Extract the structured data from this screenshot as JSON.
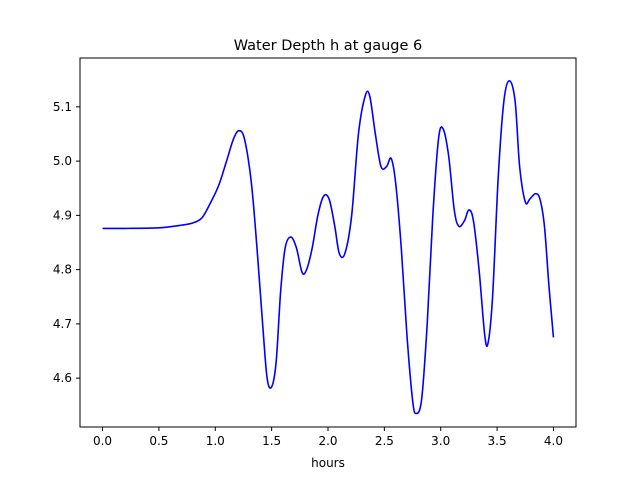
{
  "chart_data": {
    "type": "line",
    "title": "Water Depth h at gauge 6",
    "xlabel": "hours",
    "ylabel": "",
    "xlim": [
      -0.2,
      4.2
    ],
    "ylim": [
      4.51,
      5.19
    ],
    "xticks": [
      0.0,
      0.5,
      1.0,
      1.5,
      2.0,
      2.5,
      3.0,
      3.5,
      4.0
    ],
    "xtick_labels": [
      "0.0",
      "0.5",
      "1.0",
      "1.5",
      "2.0",
      "2.5",
      "3.0",
      "3.5",
      "4.0"
    ],
    "yticks": [
      4.6,
      4.7,
      4.8,
      4.9,
      5.0,
      5.1
    ],
    "ytick_labels": [
      "4.6",
      "4.7",
      "4.8",
      "4.9",
      "5.0",
      "5.1"
    ],
    "grid": false,
    "series": [
      {
        "color": "#0000ff",
        "points": [
          [
            0.0,
            4.876
          ],
          [
            0.2,
            4.876
          ],
          [
            0.5,
            4.877
          ],
          [
            0.7,
            4.882
          ],
          [
            0.8,
            4.886
          ],
          [
            0.88,
            4.895
          ],
          [
            0.95,
            4.92
          ],
          [
            1.03,
            4.955
          ],
          [
            1.1,
            5.0
          ],
          [
            1.16,
            5.04
          ],
          [
            1.21,
            5.056
          ],
          [
            1.26,
            5.04
          ],
          [
            1.32,
            4.96
          ],
          [
            1.37,
            4.84
          ],
          [
            1.42,
            4.7
          ],
          [
            1.46,
            4.6
          ],
          [
            1.5,
            4.584
          ],
          [
            1.54,
            4.63
          ],
          [
            1.58,
            4.76
          ],
          [
            1.62,
            4.84
          ],
          [
            1.67,
            4.86
          ],
          [
            1.72,
            4.84
          ],
          [
            1.77,
            4.795
          ],
          [
            1.81,
            4.8
          ],
          [
            1.86,
            4.84
          ],
          [
            1.91,
            4.9
          ],
          [
            1.96,
            4.935
          ],
          [
            2.01,
            4.93
          ],
          [
            2.06,
            4.88
          ],
          [
            2.1,
            4.83
          ],
          [
            2.15,
            4.83
          ],
          [
            2.21,
            4.9
          ],
          [
            2.27,
            5.05
          ],
          [
            2.33,
            5.12
          ],
          [
            2.37,
            5.12
          ],
          [
            2.42,
            5.05
          ],
          [
            2.47,
            4.99
          ],
          [
            2.52,
            4.99
          ],
          [
            2.56,
            5.005
          ],
          [
            2.6,
            4.96
          ],
          [
            2.65,
            4.84
          ],
          [
            2.7,
            4.68
          ],
          [
            2.75,
            4.56
          ],
          [
            2.78,
            4.535
          ],
          [
            2.83,
            4.56
          ],
          [
            2.88,
            4.7
          ],
          [
            2.93,
            4.9
          ],
          [
            2.98,
            5.04
          ],
          [
            3.02,
            5.06
          ],
          [
            3.07,
            5.01
          ],
          [
            3.12,
            4.91
          ],
          [
            3.16,
            4.88
          ],
          [
            3.21,
            4.89
          ],
          [
            3.25,
            4.91
          ],
          [
            3.29,
            4.89
          ],
          [
            3.34,
            4.8
          ],
          [
            3.39,
            4.68
          ],
          [
            3.42,
            4.665
          ],
          [
            3.46,
            4.75
          ],
          [
            3.51,
            4.97
          ],
          [
            3.56,
            5.11
          ],
          [
            3.61,
            5.148
          ],
          [
            3.66,
            5.11
          ],
          [
            3.7,
            4.99
          ],
          [
            3.75,
            4.925
          ],
          [
            3.79,
            4.93
          ],
          [
            3.84,
            4.94
          ],
          [
            3.88,
            4.93
          ],
          [
            3.92,
            4.88
          ],
          [
            3.96,
            4.77
          ],
          [
            4.0,
            4.675
          ]
        ]
      }
    ]
  }
}
